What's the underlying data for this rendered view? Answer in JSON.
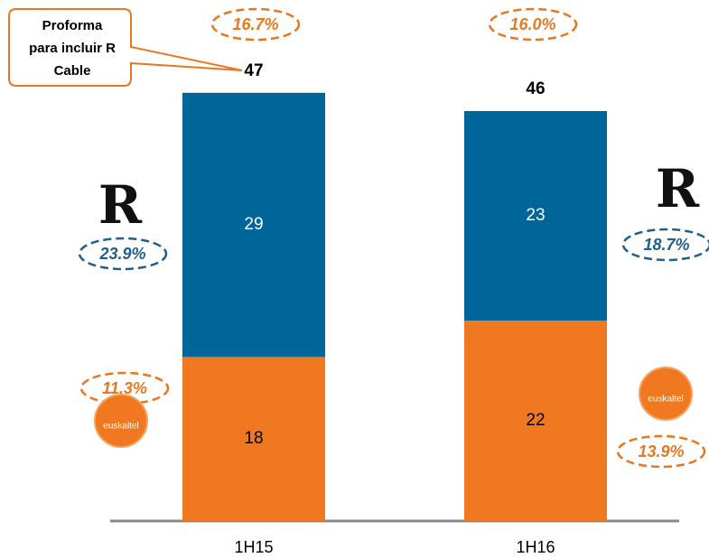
{
  "chart_data": {
    "type": "stacked-bar",
    "categories": [
      "1H15",
      "1H16"
    ],
    "series": [
      {
        "name": "euskaltel",
        "color": "#f07820",
        "values": [
          18,
          22
        ]
      },
      {
        "name": "R",
        "color": "#006699",
        "values": [
          29,
          23
        ]
      }
    ],
    "total_labels": [
      47,
      46
    ],
    "callout": [
      "Proforma",
      "para incluir R",
      "Cable"
    ],
    "annotations": [
      {
        "text": "16.7%",
        "color": "#e87722"
      },
      {
        "text": "16.0%",
        "color": "#e87722"
      },
      {
        "text": "23.9%",
        "color": "#1f5f8b"
      },
      {
        "text": "18.7%",
        "color": "#1f5f8b"
      },
      {
        "text": "11.3%",
        "color": "#e87722"
      },
      {
        "text": "13.9%",
        "color": "#e87722"
      }
    ]
  }
}
